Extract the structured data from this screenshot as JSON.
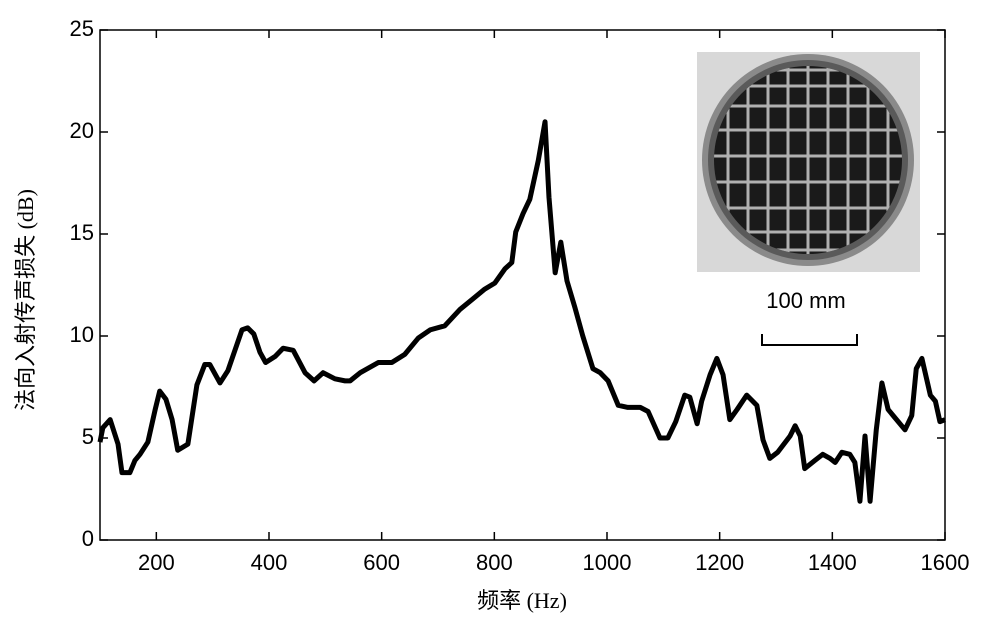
{
  "chart_data": {
    "type": "line",
    "x_label": "频率 (Hz)",
    "y_label": "法向入射传声损失 (dB)",
    "scale_label": "100 mm",
    "color": "#000000",
    "xlim": [
      100,
      1600
    ],
    "xticks": [
      200,
      400,
      600,
      800,
      1000,
      1200,
      1400,
      1600
    ],
    "ylim": [
      0,
      25
    ],
    "yticks": [
      0,
      5,
      10,
      15,
      20,
      25
    ],
    "x": [
      100,
      105,
      118,
      132,
      139,
      153,
      162,
      171,
      185,
      198,
      206,
      217,
      228,
      238,
      256,
      272,
      286,
      295,
      313,
      327,
      352,
      362,
      373,
      384,
      394,
      411,
      425,
      443,
      464,
      480,
      496,
      517,
      535,
      544,
      562,
      594,
      618,
      641,
      665,
      686,
      712,
      739,
      761,
      783,
      801,
      819,
      831,
      838,
      851,
      863,
      878,
      890,
      897,
      908,
      918,
      929,
      943,
      957,
      975,
      988,
      1002,
      1020,
      1037,
      1059,
      1073,
      1094,
      1108,
      1122,
      1138,
      1147,
      1160,
      1168,
      1183,
      1195,
      1206,
      1218,
      1231,
      1248,
      1266,
      1277,
      1289,
      1303,
      1325,
      1334,
      1343,
      1351,
      1369,
      1383,
      1396,
      1405,
      1417,
      1431,
      1440,
      1449,
      1458,
      1467,
      1478,
      1488,
      1499,
      1511,
      1529,
      1541,
      1549,
      1559,
      1574,
      1583,
      1591,
      1600
    ],
    "values": [
      4.8,
      5.5,
      5.9,
      4.7,
      3.3,
      3.3,
      3.9,
      4.2,
      4.8,
      6.4,
      7.3,
      6.9,
      5.9,
      4.4,
      4.7,
      7.6,
      8.6,
      8.6,
      7.7,
      8.3,
      10.3,
      10.4,
      10.1,
      9.2,
      8.7,
      9.0,
      9.4,
      9.3,
      8.2,
      7.8,
      8.2,
      7.9,
      7.8,
      7.8,
      8.2,
      8.7,
      8.7,
      9.1,
      9.9,
      10.3,
      10.5,
      11.3,
      11.8,
      12.3,
      12.6,
      13.3,
      13.6,
      15.1,
      16.0,
      16.7,
      18.6,
      20.5,
      16.8,
      13.1,
      14.6,
      12.7,
      11.4,
      10.0,
      8.4,
      8.2,
      7.8,
      6.6,
      6.5,
      6.5,
      6.3,
      5.0,
      5.0,
      5.8,
      7.1,
      7.0,
      5.7,
      6.8,
      8.1,
      8.9,
      8.1,
      5.9,
      6.4,
      7.1,
      6.6,
      4.9,
      4.0,
      4.3,
      5.1,
      5.6,
      5.1,
      3.5,
      3.9,
      4.2,
      4.0,
      3.8,
      4.3,
      4.2,
      3.8,
      1.9,
      5.1,
      1.9,
      5.4,
      7.7,
      6.4,
      6.0,
      5.4,
      6.1,
      8.4,
      8.9,
      7.1,
      6.8,
      5.8,
      5.9
    ]
  }
}
